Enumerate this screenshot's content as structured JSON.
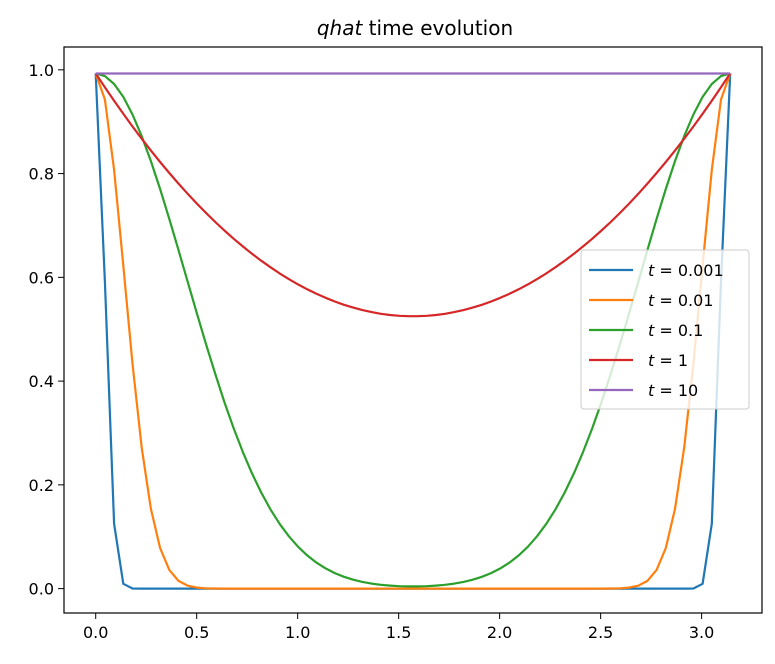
{
  "chart_data": {
    "type": "line",
    "title_italic": "qhat",
    "title_rest": " time evolution",
    "xlabel": "",
    "ylabel": "",
    "xlim": [
      -0.157,
      3.299
    ],
    "ylim": [
      -0.047,
      1.044
    ],
    "xticks": [
      "0.0",
      "0.5",
      "1.0",
      "1.5",
      "2.0",
      "2.5",
      "3.0"
    ],
    "xtick_values": [
      0.0,
      0.5,
      1.0,
      1.5,
      2.0,
      2.5,
      3.0
    ],
    "yticks": [
      "0.0",
      "0.2",
      "0.4",
      "0.6",
      "0.8",
      "1.0"
    ],
    "ytick_values": [
      0.0,
      0.2,
      0.4,
      0.6,
      0.8,
      1.0
    ],
    "grid": false,
    "legend_position": "right",
    "series": [
      {
        "t": "0.001",
        "legend_var": "t",
        "legend_eq": " = ",
        "legend_val": "0.001",
        "color": "#1f77b4"
      },
      {
        "t": "0.01",
        "legend_var": "t",
        "legend_eq": " = ",
        "legend_val": "0.01",
        "color": "#ff7f0e"
      },
      {
        "t": "0.1",
        "legend_var": "t",
        "legend_eq": " = ",
        "legend_val": "0.1",
        "color": "#2ca02c"
      },
      {
        "t": "1",
        "legend_var": "t",
        "legend_eq": " = ",
        "legend_val": "1",
        "color": "#d62728"
      },
      {
        "t": "10",
        "legend_var": "t",
        "legend_eq": " = ",
        "legend_val": "10",
        "color": "#9467bd"
      }
    ],
    "curve_x_range": [
      0.0,
      3.1416
    ],
    "curve_peak": 0.993,
    "n_points": 70
  }
}
